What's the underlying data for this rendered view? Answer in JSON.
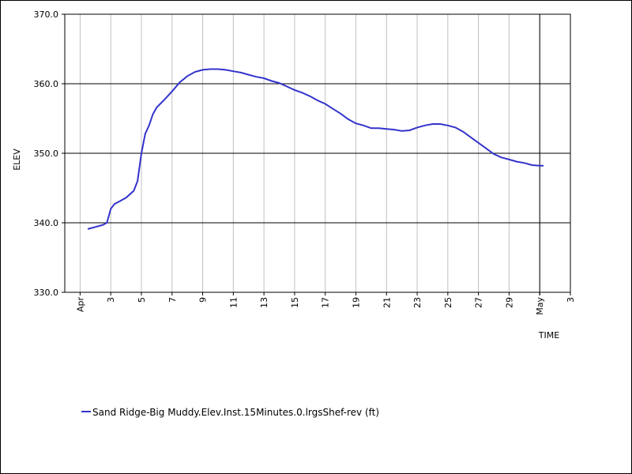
{
  "chart_data": {
    "type": "line",
    "title": "",
    "xlabel": "TIME",
    "ylabel": "ELEV",
    "xlim": [
      "2011-03-31",
      "2011-05-03"
    ],
    "ylim": [
      330,
      370
    ],
    "grid": true,
    "legend": "bottom",
    "line_color": "#3333cc",
    "y_ticks": [
      {
        "value": 330,
        "label": "330.0"
      },
      {
        "value": 340,
        "label": "340.0"
      },
      {
        "value": 350,
        "label": "350.0"
      },
      {
        "value": 360,
        "label": "360.0"
      },
      {
        "value": 370,
        "label": "370.0"
      }
    ],
    "x_ticks": [
      {
        "value": "2011-04-01",
        "label": "Apr"
      },
      {
        "value": "2011-04-03",
        "label": "3"
      },
      {
        "value": "2011-04-05",
        "label": "5"
      },
      {
        "value": "2011-04-07",
        "label": "7"
      },
      {
        "value": "2011-04-09",
        "label": "9"
      },
      {
        "value": "2011-04-11",
        "label": "11"
      },
      {
        "value": "2011-04-13",
        "label": "13"
      },
      {
        "value": "2011-04-15",
        "label": "15"
      },
      {
        "value": "2011-04-17",
        "label": "17"
      },
      {
        "value": "2011-04-19",
        "label": "19"
      },
      {
        "value": "2011-04-21",
        "label": "21"
      },
      {
        "value": "2011-04-23",
        "label": "23"
      },
      {
        "value": "2011-04-25",
        "label": "25"
      },
      {
        "value": "2011-04-27",
        "label": "27"
      },
      {
        "value": "2011-04-29",
        "label": "29"
      },
      {
        "value": "2011-05-01",
        "label": "May"
      },
      {
        "value": "2011-05-03",
        "label": "3"
      }
    ],
    "series": [
      {
        "name": "Sand Ridge-Big Muddy.Elev.Inst.15Minutes.0.lrgsShef-rev (ft)",
        "x": [
          "2011-04-01T12:00",
          "2011-04-02T00:00",
          "2011-04-02T12:00",
          "2011-04-02T18:00",
          "2011-04-03T00:00",
          "2011-04-03T06:00",
          "2011-04-03T12:00",
          "2011-04-04T00:00",
          "2011-04-04T12:00",
          "2011-04-04T18:00",
          "2011-04-05T00:00",
          "2011-04-05T06:00",
          "2011-04-05T12:00",
          "2011-04-05T18:00",
          "2011-04-06T00:00",
          "2011-04-06T12:00",
          "2011-04-07T00:00",
          "2011-04-07T12:00",
          "2011-04-08T00:00",
          "2011-04-08T12:00",
          "2011-04-09T00:00",
          "2011-04-09T12:00",
          "2011-04-10T00:00",
          "2011-04-10T12:00",
          "2011-04-11T00:00",
          "2011-04-11T12:00",
          "2011-04-12T00:00",
          "2011-04-12T12:00",
          "2011-04-13T00:00",
          "2011-04-13T12:00",
          "2011-04-14T00:00",
          "2011-04-14T12:00",
          "2011-04-15T00:00",
          "2011-04-15T12:00",
          "2011-04-16T00:00",
          "2011-04-16T12:00",
          "2011-04-17T00:00",
          "2011-04-17T12:00",
          "2011-04-18T00:00",
          "2011-04-18T12:00",
          "2011-04-19T00:00",
          "2011-04-19T12:00",
          "2011-04-20T00:00",
          "2011-04-20T12:00",
          "2011-04-21T00:00",
          "2011-04-21T12:00",
          "2011-04-22T00:00",
          "2011-04-22T12:00",
          "2011-04-23T00:00",
          "2011-04-23T12:00",
          "2011-04-24T00:00",
          "2011-04-24T12:00",
          "2011-04-25T00:00",
          "2011-04-25T12:00",
          "2011-04-26T00:00",
          "2011-04-26T12:00",
          "2011-04-27T00:00",
          "2011-04-27T12:00",
          "2011-04-28T00:00",
          "2011-04-28T12:00",
          "2011-04-29T00:00",
          "2011-04-29T12:00",
          "2011-04-30T00:00",
          "2011-04-30T12:00",
          "2011-05-01T00:00",
          "2011-05-01T06:00"
        ],
        "y": [
          339.1,
          339.4,
          339.7,
          340.0,
          342.0,
          342.7,
          343.0,
          343.6,
          344.6,
          346.0,
          350.0,
          352.8,
          354.0,
          355.6,
          356.6,
          357.7,
          358.9,
          360.2,
          361.1,
          361.7,
          362.0,
          362.1,
          362.1,
          362.0,
          361.8,
          361.6,
          361.3,
          361.0,
          360.8,
          360.4,
          360.1,
          359.6,
          359.1,
          358.7,
          358.2,
          357.6,
          357.1,
          356.4,
          355.7,
          354.9,
          354.3,
          354.0,
          353.6,
          353.6,
          353.5,
          353.4,
          353.2,
          353.3,
          353.7,
          354.0,
          354.2,
          354.2,
          354.0,
          353.7,
          353.1,
          352.3,
          351.5,
          350.7,
          349.9,
          349.4,
          349.1,
          348.8,
          348.6,
          348.3,
          348.2,
          348.2
        ]
      }
    ]
  }
}
